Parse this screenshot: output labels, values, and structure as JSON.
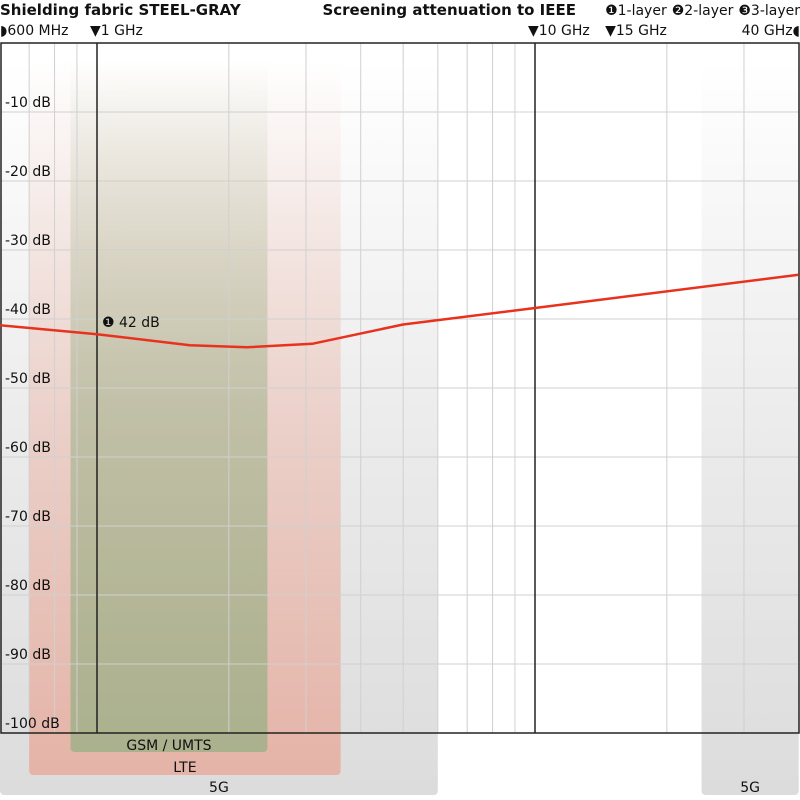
{
  "chart_data": {
    "type": "line",
    "title": "Shielding fabric STEEL-GRAY",
    "subtitle": "Screening attenuation to IEEE",
    "legend": [
      {
        "marker": "❶",
        "label": "1-layer"
      },
      {
        "marker": "❷",
        "label": "2-layer"
      },
      {
        "marker": "❸",
        "label": "3-layer"
      }
    ],
    "x_scale": "log",
    "x_unit": "GHz",
    "xlim": [
      0.6,
      40
    ],
    "ylim": [
      -100,
      0
    ],
    "grid": true,
    "x_markers": [
      {
        "value": 0.6,
        "label": "600 MHz",
        "glyph": "◗"
      },
      {
        "value": 1,
        "label": "1 GHz",
        "glyph": "▼"
      },
      {
        "value": 10,
        "label": "10 GHz",
        "glyph": "▼"
      },
      {
        "value": 15,
        "label": "15 GHz",
        "glyph": "▼"
      },
      {
        "value": 40,
        "label": "40 GHz",
        "glyph": "◖"
      }
    ],
    "x_gridlines": [
      0.7,
      0.8,
      0.9,
      2,
      3,
      4,
      5,
      6,
      7,
      8,
      9,
      20,
      30
    ],
    "y_ticks": [
      {
        "value": -10,
        "label": "-10 dB"
      },
      {
        "value": -20,
        "label": "-20 dB"
      },
      {
        "value": -30,
        "label": "-30 dB"
      },
      {
        "value": -40,
        "label": "-40 dB"
      },
      {
        "value": -50,
        "label": "-50 dB"
      },
      {
        "value": -60,
        "label": "-60 dB"
      },
      {
        "value": -70,
        "label": "-70 dB"
      },
      {
        "value": -80,
        "label": "-80 dB"
      },
      {
        "value": -90,
        "label": "-90 dB"
      },
      {
        "value": -100,
        "label": "-100 dB"
      }
    ],
    "series": [
      {
        "name": "1-layer",
        "color": "#e8321e",
        "x": [
          0.6,
          1,
          1.63,
          2.2,
          3.1,
          5,
          10,
          40
        ],
        "y": [
          -40.9,
          -42.2,
          -43.8,
          -44.1,
          -43.6,
          -40.8,
          -38.4,
          -33.6
        ]
      }
    ],
    "annotation": {
      "marker": "❶",
      "label": "42 dB",
      "x": 1,
      "y": -42
    },
    "bands": [
      {
        "label": "5G",
        "from": 0.6,
        "to": 6,
        "color": "#c8c8c8"
      },
      {
        "label": "5G",
        "from": 24,
        "to": 40,
        "color": "#c8c8c8"
      },
      {
        "label": "LTE",
        "from": 0.7,
        "to": 3.6,
        "color": "#e8a090"
      },
      {
        "label": "GSM / UMTS",
        "from": 0.87,
        "to": 2.45,
        "color": "#8fa67a"
      }
    ]
  }
}
